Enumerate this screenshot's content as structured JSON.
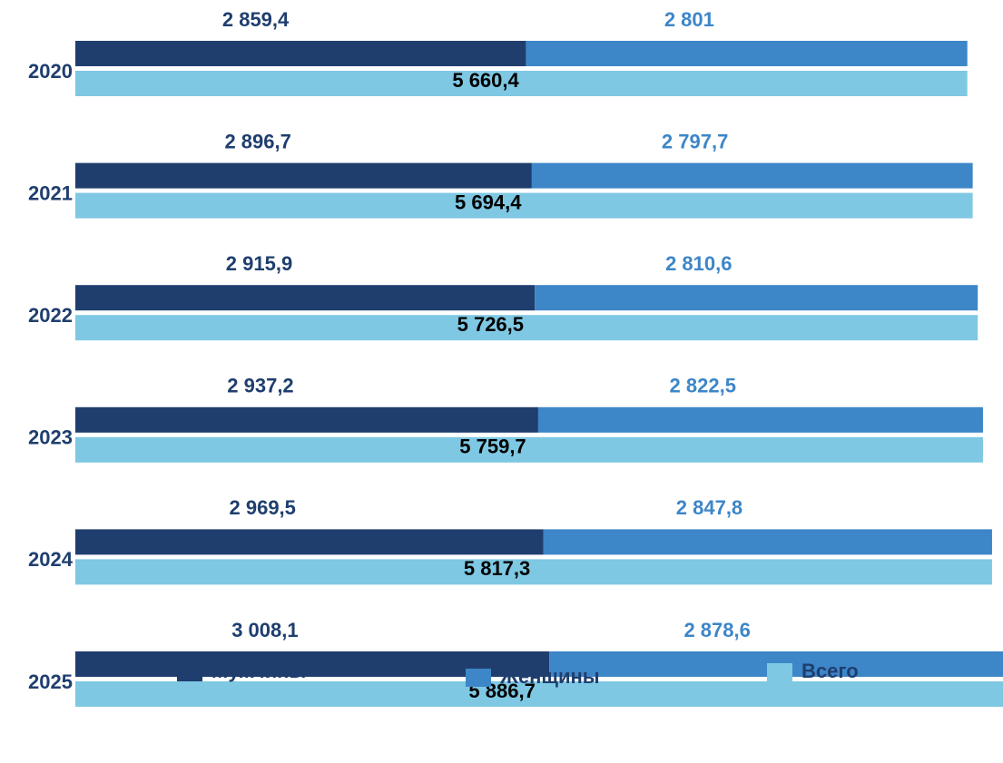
{
  "chart_data": {
    "type": "bar",
    "orientation": "horizontal",
    "categories": [
      "2020",
      "2021",
      "2022",
      "2023",
      "2024",
      "2025"
    ],
    "series": [
      {
        "name": "Мужчины",
        "color": "#1f3e6e",
        "stack": "a",
        "values": [
          2859.4,
          2896.7,
          2915.9,
          2937.2,
          2969.5,
          3008.1
        ],
        "value_labels": [
          "2 859,4",
          "2 896,7",
          "2 915,9",
          "2 937,2",
          "2 969,5",
          "3 008,1"
        ]
      },
      {
        "name": "Женщины",
        "color": "#3d86c8",
        "stack": "a",
        "values": [
          2801,
          2797.7,
          2810.6,
          2822.5,
          2847.8,
          2878.6
        ],
        "value_labels": [
          "2 801",
          "2 797,7",
          "2 810,6",
          "2 822,5",
          "2 847,8",
          "2 878,6"
        ]
      },
      {
        "name": "Всего",
        "color": "#7ec8e3",
        "stack": "b",
        "values": [
          5660.4,
          5694.4,
          5726.5,
          5759.7,
          5817.3,
          5886.7
        ],
        "value_labels": [
          "5 660,4",
          "5 694,4",
          "5 726,5",
          "5 759,7",
          "5 817,3",
          "5 886,7"
        ]
      }
    ],
    "legend": "bottom"
  }
}
